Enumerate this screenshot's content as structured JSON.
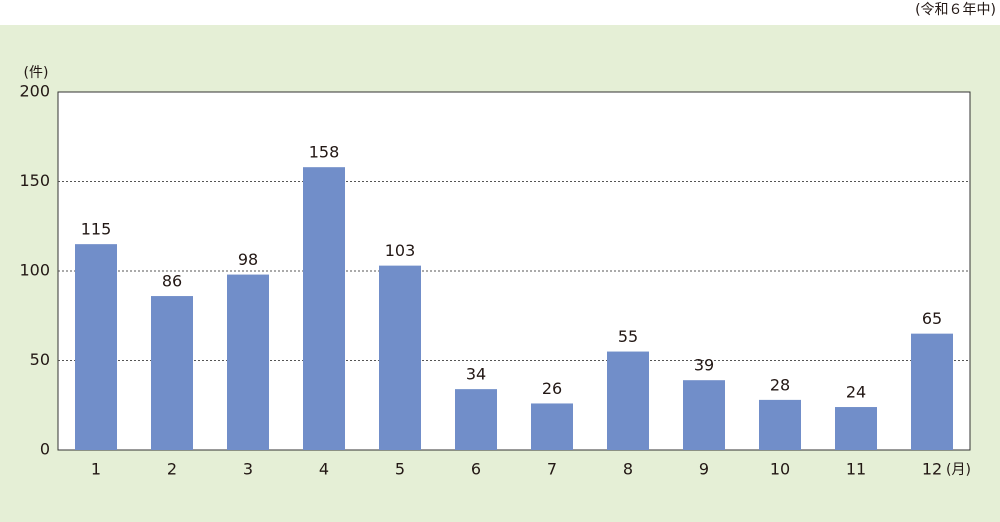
{
  "chart_data": {
    "type": "bar",
    "note": "(令和６年中)",
    "y_unit": "(件)",
    "x_unit": "(月)",
    "categories": [
      "1",
      "2",
      "3",
      "4",
      "5",
      "6",
      "7",
      "8",
      "9",
      "10",
      "11",
      "12"
    ],
    "values": [
      115,
      86,
      98,
      158,
      103,
      34,
      26,
      55,
      39,
      28,
      24,
      65
    ],
    "color": "#718ec9",
    "ylim": [
      0,
      200
    ],
    "yticks": [
      0,
      50,
      100,
      150,
      200
    ],
    "grid": true
  }
}
